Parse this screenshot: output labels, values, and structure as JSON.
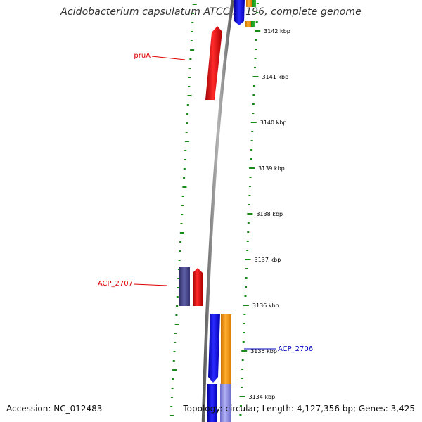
{
  "title": "Acidobacterium capsulatum ATCC 51196, complete genome",
  "accession": "Accession: NC_012483",
  "summary": "Topology: circular; Length: 4,127,356 bp; Genes: 3,425",
  "scale_labels": [
    "3142 kbp",
    "3141 kbp",
    "3140 kbp",
    "3139 kbp",
    "3138 kbp",
    "3137 kbp",
    "3136 kbp",
    "3135 kbp",
    "3134 kbp"
  ],
  "genes": {
    "pruA": {
      "label": "pruA",
      "color": "#dd0000"
    },
    "acp2707": {
      "label": "ACP_2707",
      "color": "#dd0000"
    },
    "acp2706": {
      "label": "ACP_2706",
      "color": "#0000bb"
    }
  },
  "colors": {
    "backbone": "#8a8a8a",
    "tick": "#1a8a1a",
    "forward_cds": "#ee1111",
    "reverse_cds": "#1a1aee",
    "slate": "#4a4a8a",
    "orange": "#ff9900",
    "lavender": "#8f8fe0"
  }
}
